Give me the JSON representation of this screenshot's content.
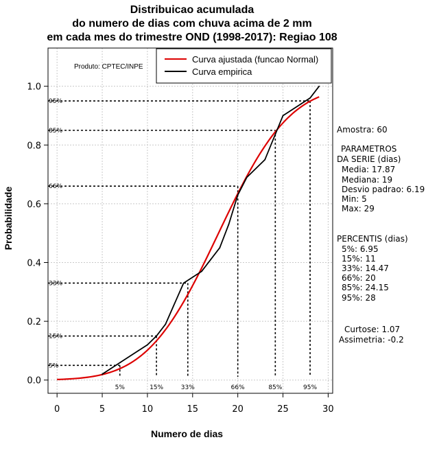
{
  "chart_data": {
    "type": "line",
    "title_lines": [
      "Distribuicao acumulada",
      "do numero de dias com chuva acima de 2 mm",
      "em cada mes do trimestre OND (1998-2017): Regiao 108"
    ],
    "xlabel": "Numero de dias",
    "ylabel": "Probabilidade",
    "xlim": [
      -1,
      30.5
    ],
    "ylim": [
      -0.045,
      1.13
    ],
    "x_ticks": [
      0,
      5,
      10,
      15,
      20,
      25,
      30
    ],
    "x_tick_labels": [
      "0",
      "5",
      "10",
      "15",
      "20",
      "25",
      "30"
    ],
    "y_ticks": [
      0.0,
      0.2,
      0.4,
      0.6,
      0.8,
      1.0
    ],
    "y_tick_labels": [
      "0.0",
      "0.2",
      "0.4",
      "0.6",
      "0.8",
      "1.0"
    ],
    "grid": true,
    "product_label": "Produto: CPTEC/INPE",
    "legend": [
      {
        "label": "Curva ajustada (funcao Normal)",
        "color": "#dd0000"
      },
      {
        "label": "Curva empirica",
        "color": "#000000"
      }
    ],
    "series": [
      {
        "name": "Curva ajustada (funcao Normal)",
        "color": "#dd0000",
        "mean": 17.87,
        "sd": 6.19,
        "x_range": [
          0,
          29
        ]
      },
      {
        "name": "Curva empirica",
        "color": "#000000",
        "x": [
          5,
          7,
          9,
          10,
          11,
          12,
          14,
          16,
          17,
          18,
          19,
          20,
          21,
          23,
          25,
          27,
          28,
          29
        ],
        "y": [
          0.02,
          0.06,
          0.1,
          0.12,
          0.15,
          0.19,
          0.33,
          0.37,
          0.41,
          0.45,
          0.53,
          0.63,
          0.69,
          0.75,
          0.9,
          0.94,
          0.96,
          1.0
        ]
      }
    ],
    "percentile_lines": [
      {
        "label": "5%",
        "x": 6.95,
        "y": 0.05
      },
      {
        "label": "15%",
        "x": 11,
        "y": 0.15
      },
      {
        "label": "33%",
        "x": 14.47,
        "y": 0.33
      },
      {
        "label": "66%",
        "x": 20,
        "y": 0.66
      },
      {
        "label": "85%",
        "x": 24.15,
        "y": 0.85
      },
      {
        "label": "95%",
        "x": 28,
        "y": 0.95
      }
    ]
  },
  "side_panel": {
    "amostra": "Amostra: 60",
    "parametros_title_1": "PARAMETROS",
    "parametros_title_2": "DA SERIE (dias)",
    "media": "Media: 17.87",
    "mediana": "Mediana: 19",
    "desvio": "Desvio padrao: 6.19",
    "min": "Min: 5",
    "max": "Max: 29",
    "percentis_title": "PERCENTIS (dias)",
    "p5": "5%: 6.95",
    "p15": "15%: 11",
    "p33": "33%: 14.47",
    "p66": "66%: 20",
    "p85": "85%: 24.15",
    "p95": "95%: 28",
    "curtose": "Curtose: 1.07",
    "assimetria": "Assimetria: -0.2"
  }
}
